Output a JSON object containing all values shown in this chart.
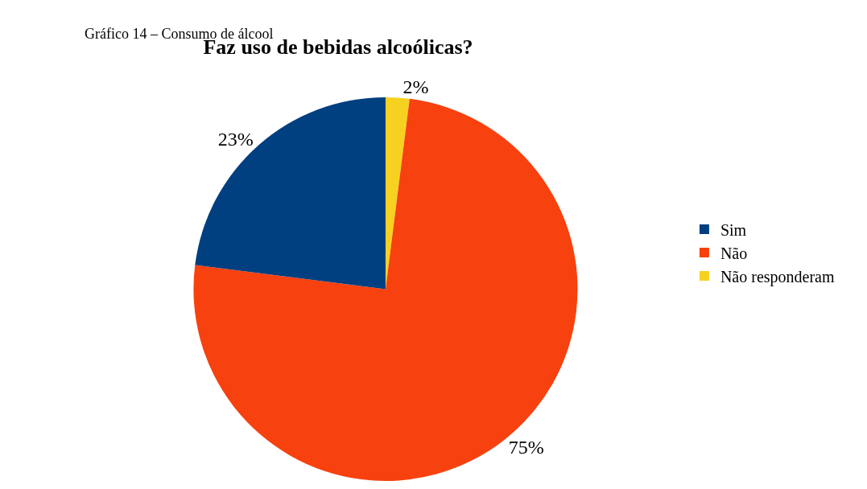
{
  "chart_data": {
    "type": "pie",
    "title": "Faz uso de bebidas alcoólicas?",
    "annotations": [
      "Gráfico 14 – Consumo de álcool"
    ],
    "categories": [
      "Sim",
      "Não",
      "Não responderam"
    ],
    "values": [
      23,
      75,
      2
    ],
    "value_labels": [
      "23%",
      "75%",
      "2%"
    ],
    "colors": [
      "#003f80",
      "#f7410f",
      "#f7d11f"
    ],
    "legend": "right"
  }
}
